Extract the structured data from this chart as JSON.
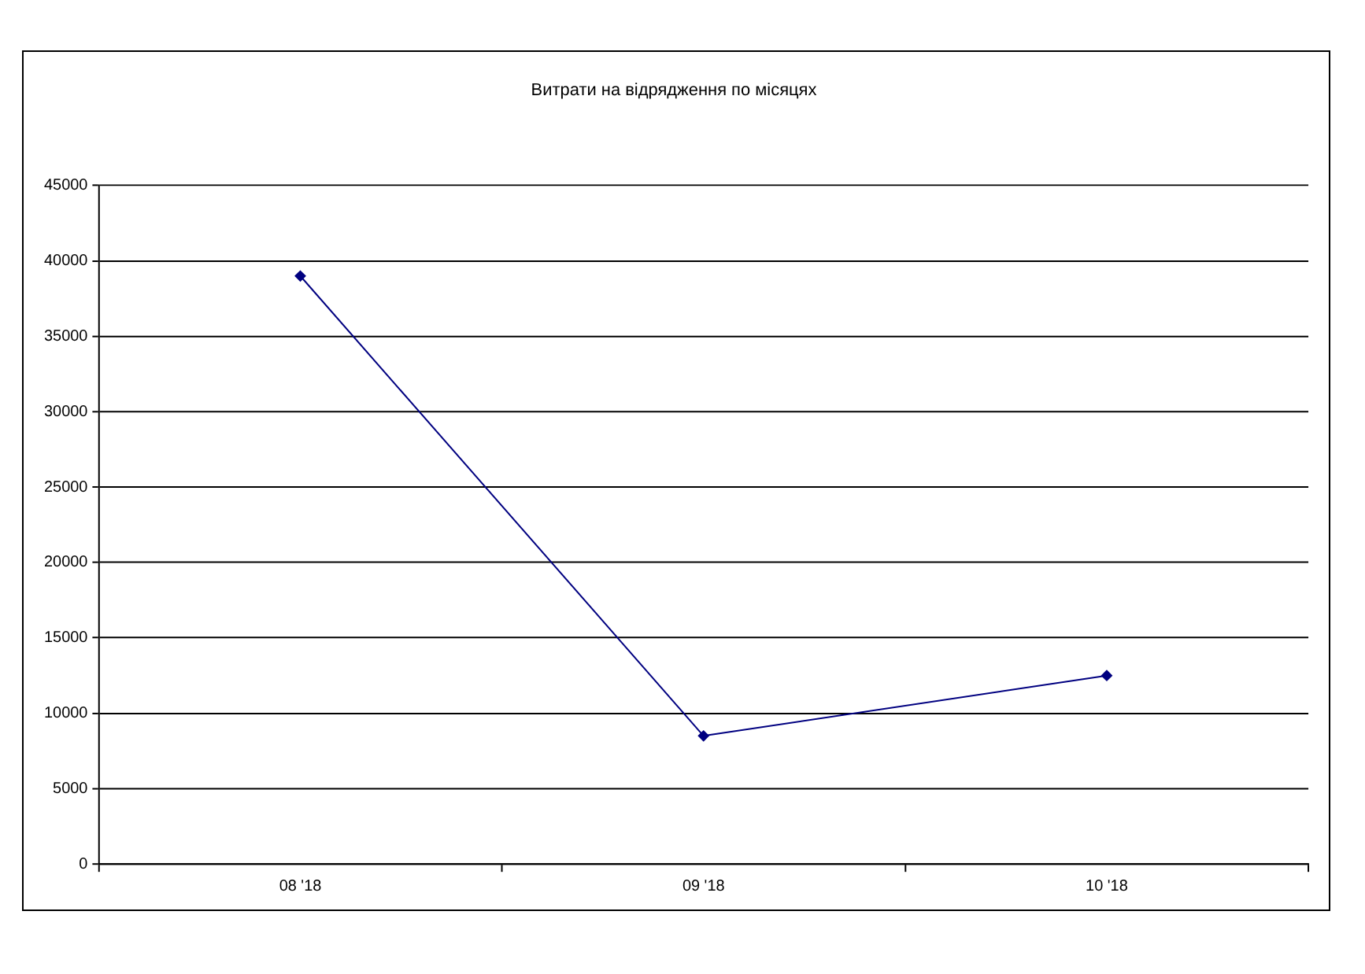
{
  "chart_data": {
    "type": "line",
    "title": "Витрати на відрядження по місяцях",
    "categories": [
      "08 '18",
      "09 '18",
      "10 '18"
    ],
    "series": [
      {
        "color": "#000080",
        "values": [
          39000,
          8500,
          12500
        ]
      }
    ],
    "ylim": [
      0,
      45000
    ],
    "yticks": [
      0,
      5000,
      10000,
      15000,
      20000,
      25000,
      30000,
      35000,
      40000,
      45000
    ],
    "grid": "y",
    "marker": "diamond",
    "line_style": "solid"
  }
}
